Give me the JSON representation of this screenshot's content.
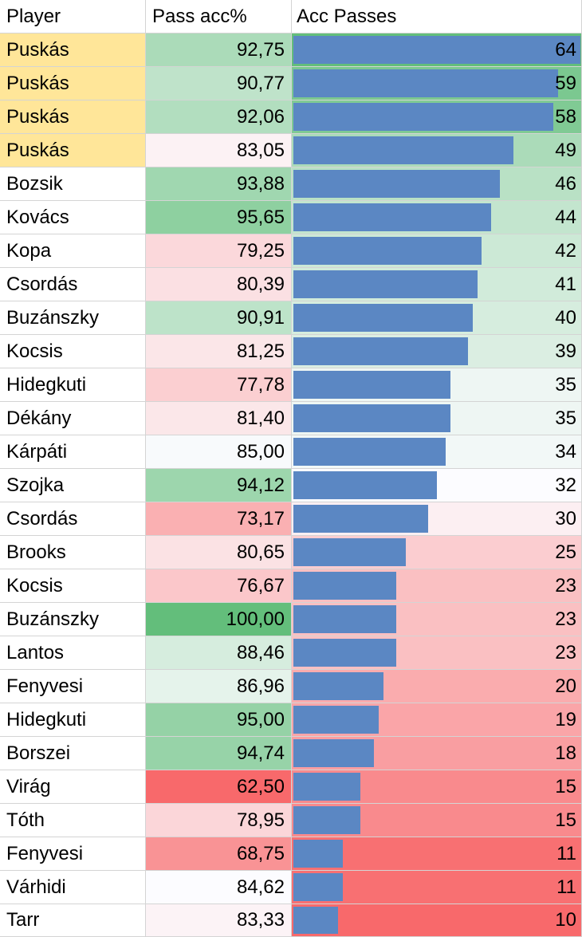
{
  "headers": {
    "player": "Player",
    "pct": "Pass acc%",
    "acc": "Acc Passes"
  },
  "colors": {
    "highlight": "#ffe699",
    "bar": "#5b87c3",
    "scale_low": "#f8696b",
    "scale_mid": "#fcfcff",
    "scale_high": "#63be7b",
    "grid": "#d4d4d4"
  },
  "chart_data": {
    "type": "table",
    "columns": [
      "Player",
      "Pass acc%",
      "Acc Passes"
    ],
    "pct_scale": [
      62.5,
      84.62,
      100
    ],
    "acc_scale": [
      10,
      32,
      64
    ],
    "bar_max": 64,
    "rows": [
      {
        "player": "Puskás",
        "pct_text": "92,75",
        "pct": 92.75,
        "acc_text": "64",
        "acc": 64,
        "highlight": true
      },
      {
        "player": "Puskás",
        "pct_text": "90,77",
        "pct": 90.77,
        "acc_text": "59",
        "acc": 59,
        "highlight": true
      },
      {
        "player": "Puskás",
        "pct_text": "92,06",
        "pct": 92.06,
        "acc_text": "58",
        "acc": 58,
        "highlight": true
      },
      {
        "player": "Puskás",
        "pct_text": "83,05",
        "pct": 83.05,
        "acc_text": "49",
        "acc": 49,
        "highlight": true
      },
      {
        "player": "Bozsik",
        "pct_text": "93,88",
        "pct": 93.88,
        "acc_text": "46",
        "acc": 46,
        "highlight": false
      },
      {
        "player": "Kovács",
        "pct_text": "95,65",
        "pct": 95.65,
        "acc_text": "44",
        "acc": 44,
        "highlight": false
      },
      {
        "player": "Kopa",
        "pct_text": "79,25",
        "pct": 79.25,
        "acc_text": "42",
        "acc": 42,
        "highlight": false
      },
      {
        "player": "Csordás",
        "pct_text": "80,39",
        "pct": 80.39,
        "acc_text": "41",
        "acc": 41,
        "highlight": false
      },
      {
        "player": "Buzánszky",
        "pct_text": "90,91",
        "pct": 90.91,
        "acc_text": "40",
        "acc": 40,
        "highlight": false
      },
      {
        "player": "Kocsis",
        "pct_text": "81,25",
        "pct": 81.25,
        "acc_text": "39",
        "acc": 39,
        "highlight": false
      },
      {
        "player": "Hidegkuti",
        "pct_text": "77,78",
        "pct": 77.78,
        "acc_text": "35",
        "acc": 35,
        "highlight": false
      },
      {
        "player": "Dékány",
        "pct_text": "81,40",
        "pct": 81.4,
        "acc_text": "35",
        "acc": 35,
        "highlight": false
      },
      {
        "player": "Kárpáti",
        "pct_text": "85,00",
        "pct": 85.0,
        "acc_text": "34",
        "acc": 34,
        "highlight": false
      },
      {
        "player": "Szojka",
        "pct_text": "94,12",
        "pct": 94.12,
        "acc_text": "32",
        "acc": 32,
        "highlight": false
      },
      {
        "player": "Csordás",
        "pct_text": "73,17",
        "pct": 73.17,
        "acc_text": "30",
        "acc": 30,
        "highlight": false
      },
      {
        "player": "Brooks",
        "pct_text": "80,65",
        "pct": 80.65,
        "acc_text": "25",
        "acc": 25,
        "highlight": false
      },
      {
        "player": "Kocsis",
        "pct_text": "76,67",
        "pct": 76.67,
        "acc_text": "23",
        "acc": 23,
        "highlight": false
      },
      {
        "player": "Buzánszky",
        "pct_text": "100,00",
        "pct": 100.0,
        "acc_text": "23",
        "acc": 23,
        "highlight": false
      },
      {
        "player": "Lantos",
        "pct_text": "88,46",
        "pct": 88.46,
        "acc_text": "23",
        "acc": 23,
        "highlight": false
      },
      {
        "player": "Fenyvesi",
        "pct_text": "86,96",
        "pct": 86.96,
        "acc_text": "20",
        "acc": 20,
        "highlight": false
      },
      {
        "player": "Hidegkuti",
        "pct_text": "95,00",
        "pct": 95.0,
        "acc_text": "19",
        "acc": 19,
        "highlight": false
      },
      {
        "player": "Borszei",
        "pct_text": "94,74",
        "pct": 94.74,
        "acc_text": "18",
        "acc": 18,
        "highlight": false
      },
      {
        "player": "Virág",
        "pct_text": "62,50",
        "pct": 62.5,
        "acc_text": "15",
        "acc": 15,
        "highlight": false
      },
      {
        "player": "Tóth",
        "pct_text": "78,95",
        "pct": 78.95,
        "acc_text": "15",
        "acc": 15,
        "highlight": false
      },
      {
        "player": "Fenyvesi",
        "pct_text": "68,75",
        "pct": 68.75,
        "acc_text": "11",
        "acc": 11,
        "highlight": false
      },
      {
        "player": "Várhidi",
        "pct_text": "84,62",
        "pct": 84.62,
        "acc_text": "11",
        "acc": 11,
        "highlight": false
      },
      {
        "player": "Tarr",
        "pct_text": "83,33",
        "pct": 83.33,
        "acc_text": "10",
        "acc": 10,
        "highlight": false
      }
    ]
  }
}
